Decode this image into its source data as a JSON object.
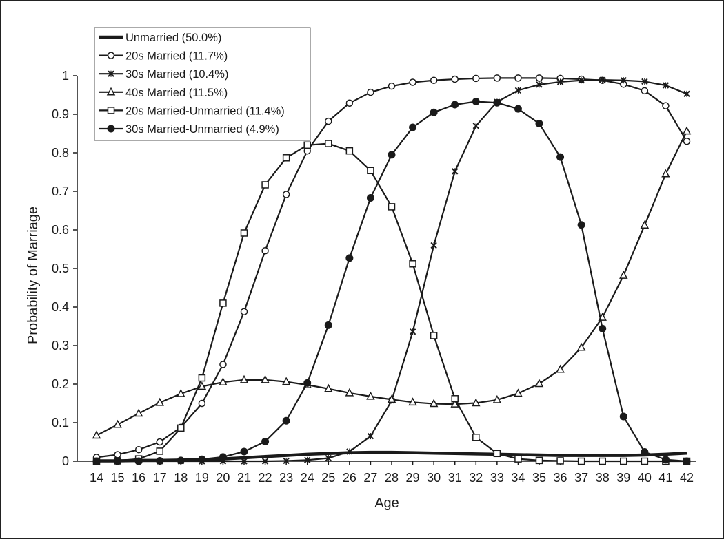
{
  "chart_data": {
    "type": "line",
    "title": "",
    "xlabel": "Age",
    "ylabel": "Probability of Marriage",
    "x": [
      14,
      15,
      16,
      17,
      18,
      19,
      20,
      21,
      22,
      23,
      24,
      25,
      26,
      27,
      28,
      29,
      30,
      31,
      32,
      33,
      34,
      35,
      36,
      37,
      38,
      39,
      40,
      41,
      42
    ],
    "ylim": [
      0,
      1
    ],
    "yticks": [
      "0",
      "0.1",
      "0.2",
      "0.3",
      "0.4",
      "0.5",
      "0.6",
      "0.7",
      "0.8",
      "0.9",
      "1"
    ],
    "grid": false,
    "legend_position": "top-left",
    "series": [
      {
        "name": "Unmarried (50.0%)",
        "marker": "none",
        "values": [
          0.001,
          0.001,
          0.002,
          0.002,
          0.003,
          0.004,
          0.006,
          0.009,
          0.012,
          0.015,
          0.018,
          0.02,
          0.022,
          0.023,
          0.023,
          0.022,
          0.021,
          0.02,
          0.019,
          0.018,
          0.017,
          0.016,
          0.015,
          0.015,
          0.015,
          0.015,
          0.016,
          0.018,
          0.021
        ]
      },
      {
        "name": "20s Married (11.7%)",
        "marker": "circle-open",
        "values": [
          0.01,
          0.017,
          0.03,
          0.05,
          0.088,
          0.15,
          0.251,
          0.388,
          0.546,
          0.692,
          0.805,
          0.882,
          0.929,
          0.957,
          0.973,
          0.983,
          0.988,
          0.991,
          0.993,
          0.994,
          0.994,
          0.994,
          0.993,
          0.991,
          0.988,
          0.978,
          0.961,
          0.922,
          0.83
        ]
      },
      {
        "name": "30s Married (10.4%)",
        "marker": "x",
        "values": [
          0.0,
          0.0,
          0.0,
          0.0,
          0.0,
          0.0,
          0.0,
          0.0,
          0.0,
          0.001,
          0.003,
          0.008,
          0.025,
          0.065,
          0.157,
          0.336,
          0.56,
          0.752,
          0.87,
          0.932,
          0.962,
          0.977,
          0.984,
          0.988,
          0.989,
          0.988,
          0.985,
          0.975,
          0.953
        ]
      },
      {
        "name": "40s Married (11.5%)",
        "marker": "triangle-open",
        "values": [
          0.067,
          0.095,
          0.124,
          0.152,
          0.175,
          0.194,
          0.205,
          0.211,
          0.211,
          0.206,
          0.198,
          0.188,
          0.177,
          0.168,
          0.16,
          0.153,
          0.149,
          0.148,
          0.151,
          0.159,
          0.176,
          0.201,
          0.238,
          0.295,
          0.373,
          0.482,
          0.612,
          0.745,
          0.856
        ]
      },
      {
        "name": "20s Married-Unmarried (11.4%)",
        "marker": "square-open",
        "values": [
          0.0,
          0.001,
          0.006,
          0.026,
          0.086,
          0.216,
          0.41,
          0.592,
          0.717,
          0.787,
          0.82,
          0.824,
          0.805,
          0.754,
          0.66,
          0.512,
          0.326,
          0.162,
          0.062,
          0.02,
          0.006,
          0.002,
          0.001,
          0.0,
          0.0,
          0.0,
          0.0,
          0.0,
          0.0
        ]
      },
      {
        "name": "30s Married-Unmarried (4.9%)",
        "marker": "circle-filled",
        "values": [
          0.0,
          0.0,
          0.0,
          0.001,
          0.002,
          0.005,
          0.011,
          0.025,
          0.051,
          0.105,
          0.203,
          0.353,
          0.527,
          0.683,
          0.795,
          0.866,
          0.905,
          0.925,
          0.933,
          0.93,
          0.914,
          0.876,
          0.789,
          0.613,
          0.344,
          0.116,
          0.024,
          0.004,
          0.0
        ]
      }
    ]
  }
}
